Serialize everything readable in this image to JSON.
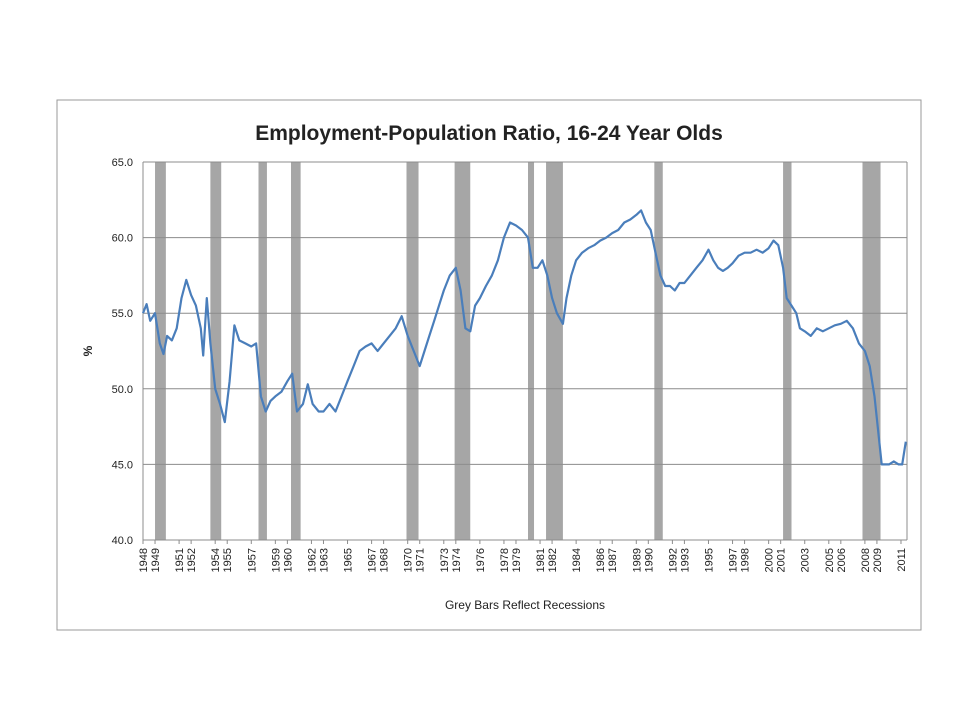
{
  "chart_data": {
    "type": "line",
    "title": "Employment-Population Ratio, 16-24 Year Olds",
    "y_label": "%",
    "footnote": "Grey Bars Reflect Recessions",
    "xlim": [
      1948,
      2011.5
    ],
    "xticks": [
      1948,
      1949,
      1951,
      1952,
      1954,
      1955,
      1957,
      1959,
      1960,
      1962,
      1963,
      1965,
      1967,
      1968,
      1970,
      1971,
      1973,
      1974,
      1976,
      1978,
      1979,
      1981,
      1982,
      1984,
      1986,
      1987,
      1989,
      1990,
      1992,
      1993,
      1995,
      1997,
      1998,
      2000,
      2001,
      2003,
      2005,
      2006,
      2008,
      2009,
      2011
    ],
    "ylim": [
      40,
      65
    ],
    "yticks": [
      {
        "value": 40,
        "label": "40.0"
      },
      {
        "value": 45,
        "label": "45.0"
      },
      {
        "value": 50,
        "label": "50.0"
      },
      {
        "value": 55,
        "label": "55.0"
      },
      {
        "value": 60,
        "label": "60.0"
      },
      {
        "value": 65,
        "label": "65.0"
      }
    ],
    "grid": true,
    "recession_color": "#a6a6a6",
    "recessions": [
      [
        1949.0,
        1949.9
      ],
      [
        1953.6,
        1954.5
      ],
      [
        1957.6,
        1958.3
      ],
      [
        1960.3,
        1961.1
      ],
      [
        1969.9,
        1970.9
      ],
      [
        1973.9,
        1975.2
      ],
      [
        1980.0,
        1980.5
      ],
      [
        1981.5,
        1982.9
      ],
      [
        1990.5,
        1991.2
      ],
      [
        2001.2,
        2001.9
      ],
      [
        2007.8,
        2009.3
      ]
    ],
    "series": [
      {
        "name": "Employment-Population Ratio",
        "color": "#4a7ebb",
        "x": [
          1948.0,
          1948.3,
          1948.6,
          1949.0,
          1949.4,
          1949.7,
          1950.0,
          1950.4,
          1950.8,
          1951.2,
          1951.6,
          1952.0,
          1952.4,
          1952.8,
          1953.0,
          1953.3,
          1953.6,
          1954.0,
          1954.4,
          1954.8,
          1955.2,
          1955.6,
          1956.0,
          1956.5,
          1957.0,
          1957.4,
          1957.8,
          1958.2,
          1958.6,
          1959.0,
          1959.5,
          1960.0,
          1960.4,
          1960.8,
          1961.3,
          1961.7,
          1962.1,
          1962.6,
          1963.0,
          1963.5,
          1964.0,
          1964.5,
          1965.0,
          1965.5,
          1966.0,
          1966.5,
          1967.0,
          1967.5,
          1968.0,
          1968.5,
          1969.0,
          1969.5,
          1970.0,
          1970.5,
          1971.0,
          1971.4,
          1971.8,
          1972.2,
          1972.6,
          1973.0,
          1973.5,
          1974.0,
          1974.4,
          1974.8,
          1975.2,
          1975.6,
          1976.0,
          1976.5,
          1977.0,
          1977.5,
          1978.0,
          1978.5,
          1979.0,
          1979.5,
          1980.0,
          1980.4,
          1980.8,
          1981.2,
          1981.6,
          1982.0,
          1982.4,
          1982.9,
          1983.2,
          1983.6,
          1984.0,
          1984.5,
          1985.0,
          1985.5,
          1986.0,
          1986.5,
          1987.0,
          1987.5,
          1988.0,
          1988.5,
          1989.0,
          1989.4,
          1989.8,
          1990.2,
          1990.6,
          1991.0,
          1991.4,
          1991.8,
          1992.2,
          1992.6,
          1993.0,
          1993.5,
          1994.0,
          1994.5,
          1995.0,
          1995.4,
          1995.8,
          1996.2,
          1996.6,
          1997.0,
          1997.5,
          1998.0,
          1998.5,
          1999.0,
          1999.5,
          2000.0,
          2000.4,
          2000.8,
          2001.2,
          2001.5,
          2001.9,
          2002.3,
          2002.6,
          2003.0,
          2003.5,
          2004.0,
          2004.5,
          2005.0,
          2005.5,
          2006.0,
          2006.5,
          2007.0,
          2007.5,
          2008.0,
          2008.4,
          2008.8,
          2009.0,
          2009.2,
          2009.4,
          2010.0,
          2010.4,
          2010.8,
          2011.1,
          2011.4
        ],
        "values": [
          55.0,
          55.6,
          54.5,
          55.0,
          53.0,
          52.3,
          53.5,
          53.2,
          54.0,
          56.0,
          57.2,
          56.2,
          55.5,
          54.0,
          52.2,
          56.0,
          53.0,
          50.0,
          49.0,
          47.8,
          50.5,
          54.2,
          53.2,
          53.0,
          52.8,
          53.0,
          49.5,
          48.5,
          49.2,
          49.5,
          49.8,
          50.5,
          51.0,
          48.5,
          49.0,
          50.3,
          49.0,
          48.5,
          48.5,
          49.0,
          48.5,
          49.5,
          50.5,
          51.5,
          52.5,
          52.8,
          53.0,
          52.5,
          53.0,
          53.5,
          54.0,
          54.8,
          53.5,
          52.5,
          51.5,
          52.5,
          53.5,
          54.5,
          55.5,
          56.5,
          57.5,
          58.0,
          56.5,
          54.0,
          53.8,
          55.5,
          56.0,
          56.8,
          57.5,
          58.5,
          60.0,
          61.0,
          60.8,
          60.5,
          60.0,
          58.0,
          58.0,
          58.5,
          57.5,
          56.0,
          55.0,
          54.3,
          56.0,
          57.5,
          58.5,
          59.0,
          59.3,
          59.5,
          59.8,
          60.0,
          60.3,
          60.5,
          61.0,
          61.2,
          61.5,
          61.8,
          61.0,
          60.5,
          59.0,
          57.5,
          56.8,
          56.8,
          56.5,
          57.0,
          57.0,
          57.5,
          58.0,
          58.5,
          59.2,
          58.5,
          58.0,
          57.8,
          58.0,
          58.3,
          58.8,
          59.0,
          59.0,
          59.2,
          59.0,
          59.3,
          59.8,
          59.5,
          58.0,
          56.0,
          55.5,
          55.0,
          54.0,
          53.8,
          53.5,
          54.0,
          53.8,
          54.0,
          54.2,
          54.3,
          54.5,
          54.0,
          53.0,
          52.5,
          51.5,
          49.5,
          48.0,
          46.5,
          45.0,
          45.0,
          45.2,
          45.0,
          45.0,
          46.5
        ]
      }
    ]
  }
}
